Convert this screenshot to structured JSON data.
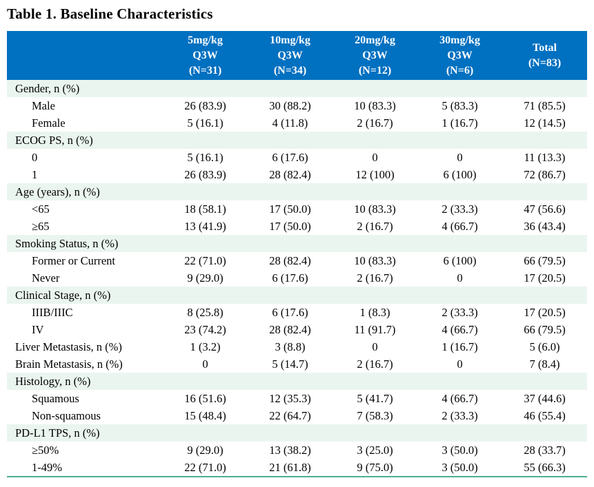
{
  "title": "Table 1. Baseline Characteristics",
  "colors": {
    "header_bg": "#0070C0",
    "header_text": "#FFFFFF",
    "section_row_bg": "#EAF5EF",
    "bottom_rule": "#4CAE93"
  },
  "header": {
    "cols": [
      {
        "lines": [
          "5mg/kg",
          "Q3W",
          "(N=31)"
        ]
      },
      {
        "lines": [
          "10mg/kg",
          "Q3W",
          "(N=34)"
        ]
      },
      {
        "lines": [
          "20mg/kg",
          "Q3W",
          "(N=12)"
        ]
      },
      {
        "lines": [
          "30mg/kg",
          "Q3W",
          "(N=6)"
        ]
      },
      {
        "lines": [
          "Total",
          "(N=83)"
        ]
      }
    ]
  },
  "rows": [
    {
      "type": "section",
      "label": "Gender, n (%)"
    },
    {
      "type": "data",
      "indent": true,
      "label": "Male",
      "values": [
        "26 (83.9)",
        "30 (88.2)",
        "10 (83.3)",
        "5 (83.3)",
        "71 (85.5)"
      ]
    },
    {
      "type": "data",
      "indent": true,
      "label": "Female",
      "values": [
        "5 (16.1)",
        "4 (11.8)",
        "2 (16.7)",
        "1 (16.7)",
        "12 (14.5)"
      ]
    },
    {
      "type": "section",
      "label": "ECOG PS, n (%)"
    },
    {
      "type": "data",
      "indent": true,
      "label": "0",
      "values": [
        "5 (16.1)",
        "6 (17.6)",
        "0",
        "0",
        "11 (13.3)"
      ]
    },
    {
      "type": "data",
      "indent": true,
      "label": "1",
      "values": [
        "26 (83.9)",
        "28 (82.4)",
        "12 (100)",
        "6 (100)",
        "72 (86.7)"
      ]
    },
    {
      "type": "section",
      "label": "Age (years), n (%)"
    },
    {
      "type": "data",
      "indent": true,
      "label": "<65",
      "values": [
        "18 (58.1)",
        "17 (50.0)",
        "10 (83.3)",
        "2 (33.3)",
        "47 (56.6)"
      ]
    },
    {
      "type": "data",
      "indent": true,
      "label": "≥65",
      "values": [
        "13 (41.9)",
        "17 (50.0)",
        "2 (16.7)",
        "4 (66.7)",
        "36 (43.4)"
      ]
    },
    {
      "type": "section",
      "label": "Smoking Status, n (%)"
    },
    {
      "type": "data",
      "indent": true,
      "label": "Former or Current",
      "values": [
        "22 (71.0)",
        "28 (82.4)",
        "10 (83.3)",
        "6 (100)",
        "66 (79.5)"
      ]
    },
    {
      "type": "data",
      "indent": true,
      "label": "Never",
      "values": [
        "9 (29.0)",
        "6 (17.6)",
        "2 (16.7)",
        "0",
        "17 (20.5)"
      ]
    },
    {
      "type": "section",
      "label": "Clinical Stage, n (%)"
    },
    {
      "type": "data",
      "indent": true,
      "label": "IIIB/IIIC",
      "values": [
        "8 (25.8)",
        "6 (17.6)",
        "1 (8.3)",
        "2 (33.3)",
        "17 (20.5)"
      ]
    },
    {
      "type": "data",
      "indent": true,
      "label": "IV",
      "values": [
        "23 (74.2)",
        "28 (82.4)",
        "11 (91.7)",
        "4 (66.7)",
        "66 (79.5)"
      ]
    },
    {
      "type": "data",
      "indent": false,
      "label": "Liver Metastasis, n (%)",
      "values": [
        "1 (3.2)",
        "3 (8.8)",
        "0",
        "1 (16.7)",
        "5 (6.0)"
      ]
    },
    {
      "type": "data",
      "indent": false,
      "label": "Brain Metastasis, n (%)",
      "values": [
        "0",
        "5 (14.7)",
        "2 (16.7)",
        "0",
        "7 (8.4)"
      ]
    },
    {
      "type": "section",
      "label": "Histology, n (%)"
    },
    {
      "type": "data",
      "indent": true,
      "label": "Squamous",
      "values": [
        "16 (51.6)",
        "12 (35.3)",
        "5 (41.7)",
        "4 (66.7)",
        "37 (44.6)"
      ]
    },
    {
      "type": "data",
      "indent": true,
      "label": "Non-squamous",
      "values": [
        "15 (48.4)",
        "22 (64.7)",
        "7 (58.3)",
        "2 (33.3)",
        "46 (55.4)"
      ]
    },
    {
      "type": "section",
      "label": "PD-L1 TPS, n (%)"
    },
    {
      "type": "data",
      "indent": true,
      "label": "≥50%",
      "values": [
        "9 (29.0)",
        "13 (38.2)",
        "3 (25.0)",
        "3 (50.0)",
        "28 (33.7)"
      ]
    },
    {
      "type": "data",
      "indent": true,
      "label": "1-49%",
      "values": [
        "22 (71.0)",
        "21 (61.8)",
        "9 (75.0)",
        "3 (50.0)",
        "55 (66.3)"
      ]
    }
  ]
}
